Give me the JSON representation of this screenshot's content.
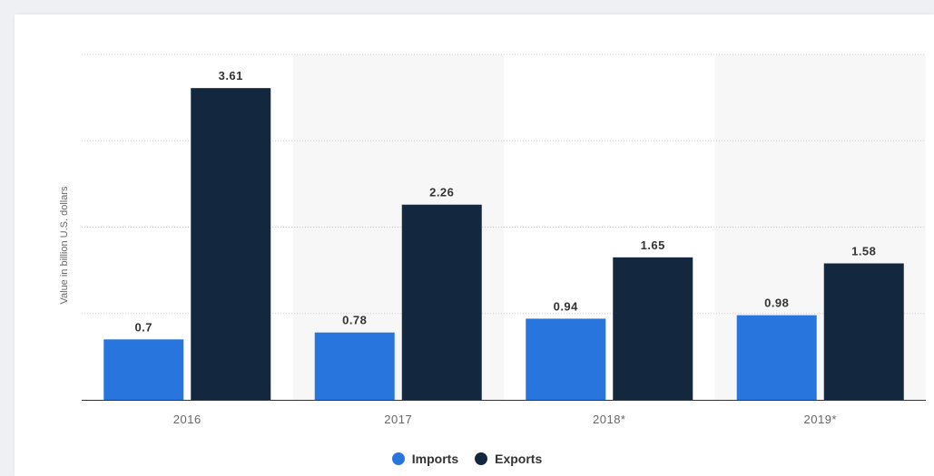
{
  "chart_data": {
    "type": "bar",
    "categories": [
      "2016",
      "2017",
      "2018*",
      "2019*"
    ],
    "series": [
      {
        "name": "Imports",
        "color": "#2876dd",
        "values": [
          0.7,
          0.78,
          0.94,
          0.98
        ],
        "labels": [
          "0.7",
          "0.78",
          "0.94",
          "0.98"
        ]
      },
      {
        "name": "Exports",
        "color": "#13283e",
        "values": [
          3.61,
          2.26,
          1.65,
          1.58
        ],
        "labels": [
          "3.61",
          "2.26",
          "1.65",
          "1.58"
        ]
      }
    ],
    "ylabel": "Value in billion U.S. dollars",
    "ylim": [
      0,
      4
    ],
    "grid": true,
    "legend_position": "bottom-center"
  }
}
